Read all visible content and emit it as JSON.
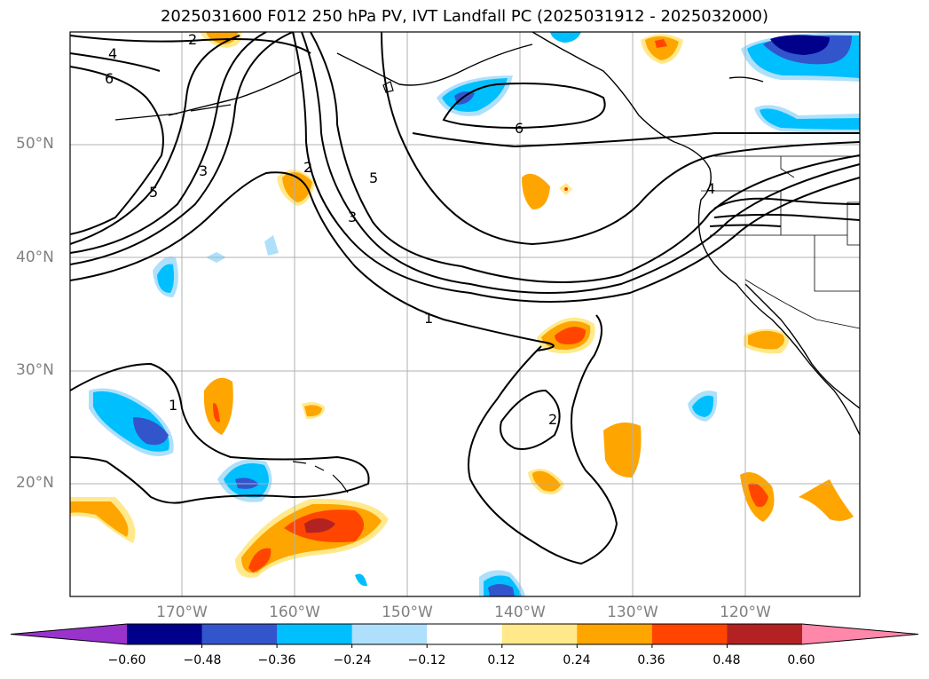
{
  "title": "2025031600 F012 250 hPa PV, IVT Landfall PC (2025031912 - 2025032000)",
  "lat_labels": [
    "50°N",
    "40°N",
    "30°N",
    "20°N"
  ],
  "lon_labels": [
    "170°W",
    "160°W",
    "150°W",
    "140°W",
    "130°W",
    "120°W"
  ],
  "contour_labels": [
    "2",
    "4",
    "6",
    "5",
    "3",
    "2",
    "5",
    "3",
    "6",
    "1",
    "1",
    "2",
    "4"
  ],
  "colorbar": {
    "ticks": [
      "−0.60",
      "−0.48",
      "−0.36",
      "−0.24",
      "−0.12",
      "0.12",
      "0.24",
      "0.36",
      "0.48",
      "0.60"
    ],
    "colors": [
      "#9933cc",
      "#00008b",
      "#3355cc",
      "#00bfff",
      "#aee0fb",
      "#ffffff",
      "#ffe98a",
      "#ffa500",
      "#ff4500",
      "#b22222",
      "#ff88aa"
    ]
  }
}
